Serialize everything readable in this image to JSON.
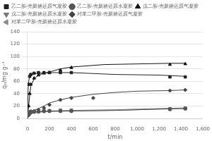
{
  "chart_data": {
    "type": "scatter",
    "x_label": "t/min",
    "y_label": "qₑ/mg g⁻¹",
    "xlim": [
      0,
      1600
    ],
    "ylim": [
      0,
      140
    ],
    "xticks": [
      0,
      200,
      400,
      600,
      800,
      1000,
      1200,
      1400,
      1600
    ],
    "yticks": [
      0,
      20,
      40,
      60,
      80,
      100,
      120,
      140
    ],
    "grid": "y",
    "legend": "upper left",
    "series": [
      {
        "name": "乙二胺-壳聚糖还原气凝胶",
        "marker": "s",
        "color": "#222222",
        "x": [
          10,
          20,
          30,
          60,
          100,
          150,
          200,
          300,
          400,
          1300,
          1440
        ],
        "values": [
          55,
          68,
          71,
          73,
          74,
          74,
          74,
          74,
          74,
          67,
          67
        ],
        "fit_x": [
          0,
          5,
          10,
          20,
          30,
          60,
          100,
          200,
          400,
          800,
          1200,
          1440
        ],
        "fit_y": [
          0,
          45,
          60,
          68,
          70,
          72,
          73,
          74,
          74,
          71,
          70,
          68
        ]
      },
      {
        "name": "乙二胺-壳聚糖还原水凝胶",
        "marker": "o",
        "color": "#555555",
        "x": [
          10,
          20,
          30,
          60,
          100,
          150,
          200,
          300,
          400,
          1300,
          1440
        ],
        "values": [
          8,
          10,
          11,
          11,
          11,
          12,
          12,
          12,
          12,
          15,
          16
        ],
        "fit_x": [
          0,
          10,
          30,
          60,
          100,
          200,
          400,
          800,
          1200,
          1440
        ],
        "fit_y": [
          0,
          7,
          9,
          10,
          11,
          12,
          12,
          13,
          15,
          16
        ]
      },
      {
        "name": "戊二胺-壳聚糖还原气凝胶",
        "marker": "^",
        "color": "#111111",
        "x": [
          10,
          20,
          30,
          60,
          100,
          150,
          200,
          300,
          400,
          1300,
          1440
        ],
        "values": [
          20,
          40,
          55,
          65,
          70,
          73,
          74,
          78,
          82,
          87,
          88
        ],
        "fit_x": [
          0,
          5,
          10,
          20,
          30,
          60,
          100,
          150,
          200,
          300,
          400,
          700,
          1000,
          1300,
          1440
        ],
        "fit_y": [
          0,
          12,
          20,
          38,
          52,
          64,
          70,
          73,
          75,
          80,
          83,
          87,
          88,
          89,
          89
        ]
      },
      {
        "name": "戊二胺-壳聚糖还原水凝胶",
        "marker": "v",
        "color": "#777777",
        "x": [
          10,
          20,
          30,
          60,
          100,
          150,
          200,
          300,
          400,
          1300,
          1440
        ],
        "values": [
          7,
          9,
          10,
          11,
          12,
          12,
          13,
          14,
          14,
          16,
          17
        ],
        "fit_x": [
          0,
          10,
          30,
          60,
          100,
          200,
          400,
          800,
          1200,
          1440
        ],
        "fit_y": [
          0,
          6,
          8,
          10,
          11,
          12,
          13,
          14,
          16,
          17
        ]
      },
      {
        "name": "对苯二甲胺-壳聚糖还原气凝胶",
        "marker": "D",
        "color": "#444444",
        "x": [
          10,
          20,
          30,
          60,
          100,
          150,
          200,
          300,
          400,
          600,
          1300,
          1440
        ],
        "values": [
          5,
          8,
          10,
          12,
          14,
          17,
          22,
          30,
          33,
          33,
          45,
          46
        ],
        "fit_x": [
          0,
          5,
          10,
          20,
          30,
          60,
          100,
          150,
          200,
          300,
          400,
          600,
          800,
          1000,
          1300,
          1440
        ],
        "fit_y": [
          0,
          3,
          5,
          7,
          9,
          13,
          16,
          20,
          25,
          30,
          34,
          39,
          42,
          44,
          45,
          46
        ]
      },
      {
        "name": "对苯二甲胺-壳聚糖还原水凝胶",
        "marker": "<",
        "color": "#888888",
        "x": [
          10,
          20,
          30,
          60,
          100,
          150,
          200,
          300,
          400,
          1300,
          1440
        ],
        "values": [
          6,
          8,
          9,
          10,
          11,
          11,
          12,
          12,
          13,
          15,
          16
        ],
        "fit_x": [
          0,
          10,
          30,
          60,
          100,
          200,
          400,
          800,
          1200,
          1440
        ],
        "fit_y": [
          0,
          5,
          7,
          9,
          10,
          11,
          12,
          13,
          15,
          16
        ]
      }
    ]
  }
}
